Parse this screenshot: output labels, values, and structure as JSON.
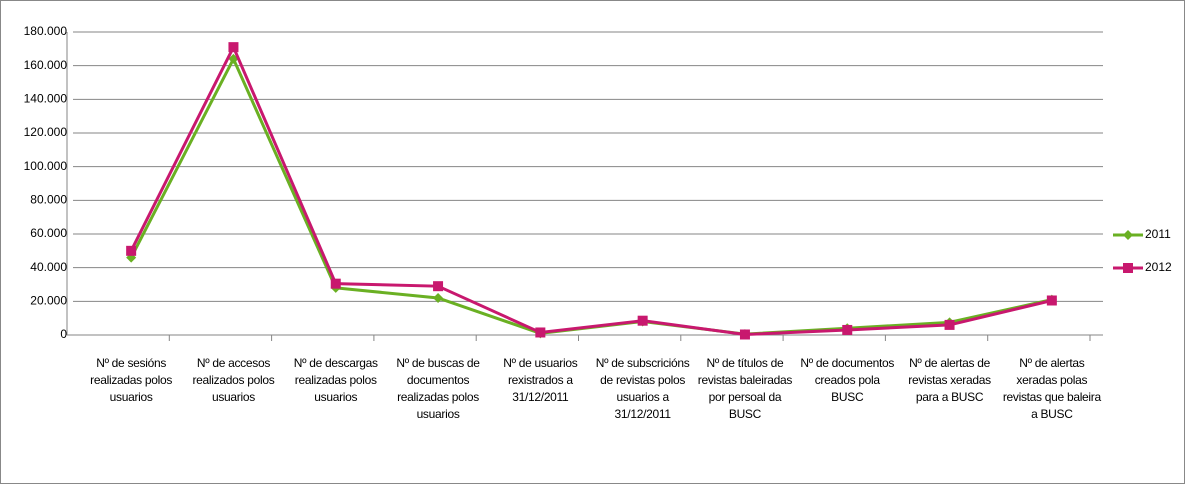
{
  "chart_data": {
    "type": "line",
    "categories": [
      "Nº de sesións realizadas polos usuarios",
      "Nº de accesos realizados polos usuarios",
      "Nº de descargas realizadas polos usuarios",
      "Nº de buscas de documentos realizadas polos usuarios",
      "Nº de usuarios rexistrados a 31/12/2011",
      "Nº de subscricións de revistas polos usuarios a 31/12/2011",
      "Nº de títulos de revistas baleiradas por persoal da BUSC",
      "Nº de documentos creados pola BUSC",
      "Nº de alertas de revistas xeradas para a BUSC",
      "Nº de alertas xeradas polas revistas que baleira a BUSC"
    ],
    "series": [
      {
        "name": "2011",
        "color": "#6ab023",
        "marker": "diamond",
        "values": [
          46000,
          164000,
          28000,
          22000,
          1000,
          8000,
          500,
          4000,
          7500,
          21000
        ]
      },
      {
        "name": "2012",
        "color": "#c8186e",
        "marker": "square",
        "values": [
          50000,
          171000,
          30500,
          29000,
          1500,
          8500,
          300,
          3000,
          6000,
          20500
        ]
      }
    ],
    "ylim": [
      0,
      180000
    ],
    "yticks": [
      0,
      {
        "value": 20000,
        "label": "20.000"
      },
      {
        "value": 40000,
        "label": "40.000"
      },
      {
        "value": 60000,
        "label": "60.000"
      },
      {
        "value": 80000,
        "label": "80.000"
      },
      {
        "value": 100000,
        "label": "100.000"
      },
      {
        "value": 120000,
        "label": "120.000"
      },
      {
        "value": 140000,
        "label": "140.000"
      },
      {
        "value": 160000,
        "label": "160.000"
      },
      {
        "value": 180000,
        "label": "180.000"
      }
    ],
    "grid": true,
    "legend": "right"
  }
}
